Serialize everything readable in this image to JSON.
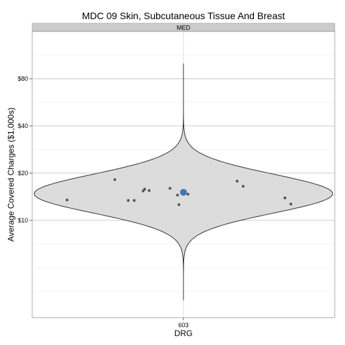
{
  "chart_data": {
    "type": "violin",
    "title": "MDC 09 Skin, Subcutaneous Tissue And Breast",
    "facet_label": "MED",
    "xlabel": "DRG",
    "ylabel": "Average Covered Charges ($1,000s)",
    "categories": [
      "603"
    ],
    "y_scale": "log",
    "y_ticks": [
      10,
      20,
      40,
      80
    ],
    "y_tick_labels": [
      "$10",
      "$20",
      "$40",
      "$80"
    ],
    "ylim": [
      2.4,
      160
    ],
    "grid": true,
    "violin_fill": "#dcdcdc",
    "violin_stroke": "#333333",
    "point_color": "#555555",
    "mean_color": "#3f78b4",
    "violin_range": [
      3.1,
      100
    ],
    "points": [
      {
        "x": -0.78,
        "y": 13.5
      },
      {
        "x": -0.46,
        "y": 18.2
      },
      {
        "x": -0.37,
        "y": 13.4
      },
      {
        "x": -0.33,
        "y": 13.4
      },
      {
        "x": -0.27,
        "y": 15.4
      },
      {
        "x": -0.26,
        "y": 15.8
      },
      {
        "x": -0.23,
        "y": 15.5
      },
      {
        "x": -0.09,
        "y": 16.0
      },
      {
        "x": -0.04,
        "y": 14.5
      },
      {
        "x": -0.03,
        "y": 12.6
      },
      {
        "x": 0.03,
        "y": 14.7
      },
      {
        "x": 0.36,
        "y": 17.8
      },
      {
        "x": 0.4,
        "y": 16.5
      },
      {
        "x": 0.68,
        "y": 13.9
      },
      {
        "x": 0.72,
        "y": 12.7
      }
    ],
    "mean": {
      "x": 0,
      "y": 15.1
    }
  }
}
